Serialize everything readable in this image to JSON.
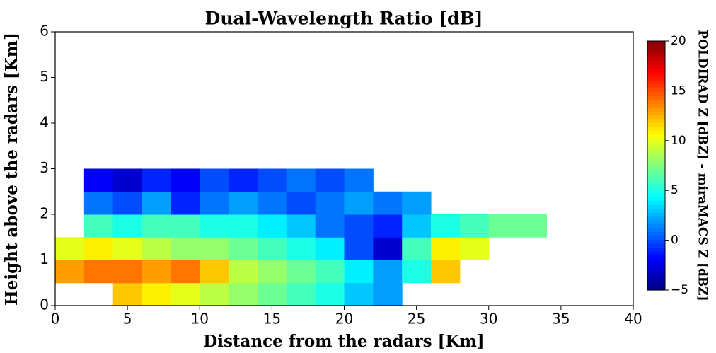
{
  "chart_data": {
    "type": "heatmap",
    "title": "Dual-Wavelength Ratio [dB]",
    "xlabel": "Distance from the radars [Km]",
    "ylabel": "Height above the radars [Km]",
    "colorbar_label": "POLDIRAD Z [dBZ] - miraMACS Z [dBZ]",
    "colormap": "jet",
    "xbins": [
      0,
      2,
      4,
      6,
      8,
      10,
      12,
      14,
      16,
      18,
      20,
      22,
      24,
      26,
      28,
      30,
      32,
      34,
      36
    ],
    "ybins": [
      0,
      0.5,
      1,
      1.5,
      2,
      2.5,
      3
    ],
    "z": [
      [
        null,
        null,
        12,
        11,
        10,
        9,
        8,
        7,
        6,
        5,
        3,
        2,
        null,
        null,
        null,
        null,
        null,
        null
      ],
      [
        13,
        14,
        14,
        13,
        14,
        12,
        9,
        8,
        7,
        6,
        4,
        2,
        5,
        12,
        null,
        null,
        null,
        null
      ],
      [
        10,
        11,
        10,
        9,
        8,
        8,
        7,
        6,
        5,
        4,
        0,
        -3,
        6,
        11,
        10,
        null,
        null,
        null
      ],
      [
        null,
        6,
        5,
        6,
        6,
        5,
        5,
        4,
        3,
        1,
        0,
        -1,
        3,
        5,
        6,
        7,
        7,
        null
      ],
      [
        null,
        1,
        0,
        2,
        -1,
        1,
        2,
        1,
        0,
        1,
        2,
        1,
        2,
        null,
        null,
        null,
        null,
        null
      ],
      [
        null,
        -2,
        -3,
        -1,
        -2,
        0,
        -1,
        0,
        1,
        0,
        1,
        null,
        null,
        null,
        null,
        null,
        null,
        null
      ]
    ],
    "xlim": [
      0,
      40
    ],
    "xticks": [
      0,
      5,
      10,
      15,
      20,
      25,
      30,
      35,
      40
    ],
    "ylim": [
      0,
      6
    ],
    "yticks": [
      0,
      1,
      2,
      3,
      4,
      5,
      6
    ],
    "zlim": [
      -5,
      20
    ],
    "zticks": [
      {
        "value": -5,
        "label": "−5"
      },
      0,
      5,
      10,
      15,
      20
    ]
  }
}
